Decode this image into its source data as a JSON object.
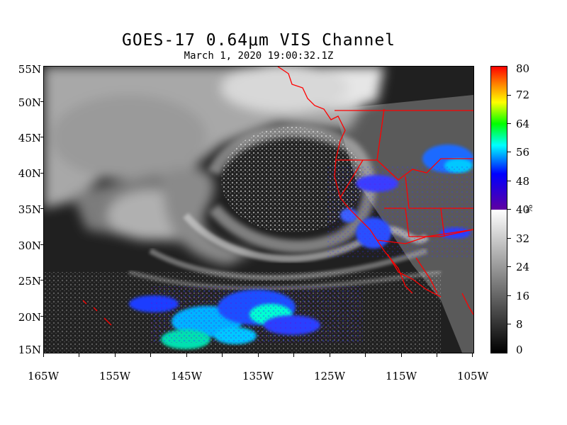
{
  "title": "GOES-17  0.64μm VIS Channel",
  "subtitle": "March  1,  2020 19:00:32.1Z",
  "lat_labels": [
    "55N",
    "50N",
    "45N",
    "40N",
    "35N",
    "30N",
    "25N",
    "20N",
    "15N"
  ],
  "lon_labels": [
    "165W",
    "155W",
    "145W",
    "135W",
    "125W",
    "115W",
    "105W"
  ],
  "colorbar": {
    "labels": [
      "80",
      "72",
      "64",
      "56",
      "48",
      "40",
      "32",
      "24",
      "16",
      "8",
      "0"
    ],
    "unit": "%"
  },
  "map_extent": {
    "lon_min": -165,
    "lon_max": -105,
    "lat_min": 15,
    "lat_max": 55
  },
  "colors": {
    "border": "#ff0000",
    "background": "#ffffff",
    "frame": "#000000"
  }
}
